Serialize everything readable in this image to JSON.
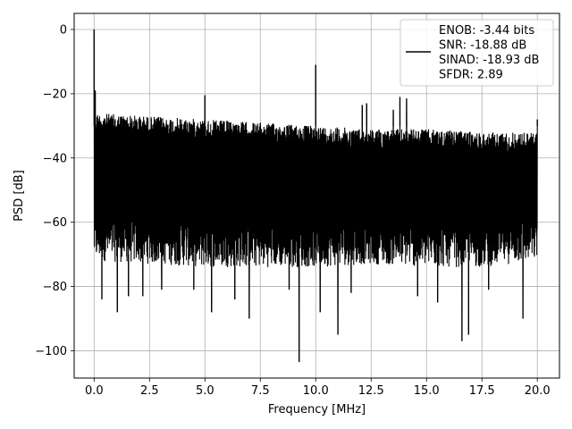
{
  "chart_data": {
    "type": "line",
    "xlabel": "Frequency [MHz]",
    "ylabel": "PSD [dB]",
    "xlim": [
      -0.9,
      21.0
    ],
    "ylim": [
      -108.5,
      5.0
    ],
    "xticks": [
      0.0,
      2.5,
      5.0,
      7.5,
      10.0,
      12.5,
      15.0,
      17.5,
      20.0
    ],
    "xtick_labels": [
      "0.0",
      "2.5",
      "5.0",
      "7.5",
      "10.0",
      "12.5",
      "15.0",
      "17.5",
      "20.0"
    ],
    "yticks": [
      0,
      -20,
      -40,
      -60,
      -80,
      -100
    ],
    "ytick_labels": [
      "0",
      "−20",
      "−40",
      "−60",
      "−80",
      "−100"
    ],
    "grid": true,
    "legend_position": "top-right",
    "series": [
      {
        "name": "ENOB: -3.44 bits\nSNR: -18.88 dB\nSINAD: -18.93 dB\nSFDR: 2.89",
        "color": "#000000",
        "noise_band": {
          "x_range": [
            0.0,
            20.0
          ],
          "upper_envelope": [
            [
              0.1,
              -26
            ],
            [
              2.5,
              -27
            ],
            [
              5.0,
              -28
            ],
            [
              7.5,
              -29
            ],
            [
              10.0,
              -30
            ],
            [
              12.5,
              -31
            ],
            [
              15.0,
              -31
            ],
            [
              17.5,
              -32
            ],
            [
              20.0,
              -32
            ]
          ],
          "lower_envelope": [
            [
              0.1,
              -72
            ],
            [
              2.5,
              -73
            ],
            [
              5.0,
              -74
            ],
            [
              7.5,
              -74
            ],
            [
              10.0,
              -74
            ],
            [
              12.5,
              -73
            ],
            [
              15.0,
              -74
            ],
            [
              17.5,
              -74
            ],
            [
              20.0,
              -72
            ]
          ]
        },
        "spurs": [
          {
            "x": 0.0,
            "y": 0
          },
          {
            "x": 0.05,
            "y": -19
          },
          {
            "x": 5.0,
            "y": -20.5
          },
          {
            "x": 10.0,
            "y": -11
          },
          {
            "x": 12.1,
            "y": -23.5
          },
          {
            "x": 12.3,
            "y": -23
          },
          {
            "x": 13.5,
            "y": -25
          },
          {
            "x": 13.8,
            "y": -21
          },
          {
            "x": 14.1,
            "y": -21.5
          },
          {
            "x": 20.0,
            "y": -28
          }
        ],
        "dips": [
          {
            "x": 0.35,
            "y": -84
          },
          {
            "x": 1.05,
            "y": -88
          },
          {
            "x": 1.55,
            "y": -83
          },
          {
            "x": 2.2,
            "y": -83
          },
          {
            "x": 3.05,
            "y": -81
          },
          {
            "x": 4.5,
            "y": -81
          },
          {
            "x": 5.3,
            "y": -88
          },
          {
            "x": 6.35,
            "y": -84
          },
          {
            "x": 7.0,
            "y": -90
          },
          {
            "x": 8.8,
            "y": -81
          },
          {
            "x": 9.25,
            "y": -103.5
          },
          {
            "x": 10.2,
            "y": -88
          },
          {
            "x": 11.0,
            "y": -95
          },
          {
            "x": 11.6,
            "y": -82
          },
          {
            "x": 14.6,
            "y": -83
          },
          {
            "x": 15.5,
            "y": -85
          },
          {
            "x": 16.6,
            "y": -97
          },
          {
            "x": 16.9,
            "y": -95
          },
          {
            "x": 17.8,
            "y": -81
          },
          {
            "x": 19.35,
            "y": -90
          }
        ]
      }
    ]
  }
}
